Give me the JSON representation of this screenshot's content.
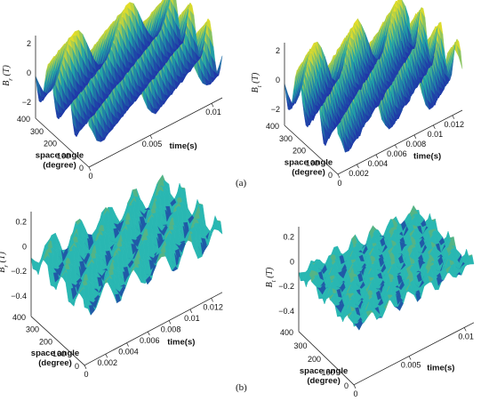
{
  "figure": {
    "label_a": "(a)",
    "label_b": "(b)"
  },
  "colors": {
    "surface_low": "#1f2fa8",
    "surface_mid": "#21a6a6",
    "surface_high": "#f5e21b",
    "flat_surface": "#29b7b2",
    "axis": "#222222"
  },
  "chart_data": [
    {
      "type": "surface",
      "panel": "a-left",
      "zlabel": "B_r (T)",
      "zlabel_main": "B",
      "zlabel_sub": "r",
      "zlabel_unit": "(T)",
      "ylabel_lines": [
        "space angle",
        "(degree)"
      ],
      "xlabel": "time(s)",
      "z_ticks": [
        "2",
        "0",
        "−2"
      ],
      "y_ticks": [
        "400",
        "300",
        "200",
        "100",
        "0"
      ],
      "x_ticks": [
        "0",
        "0.005",
        "0.01"
      ],
      "xlim": [
        0,
        0.012
      ],
      "ylim": [
        0,
        400
      ],
      "zlim": [
        -2,
        2
      ],
      "wave": {
        "amplitude": 1.8,
        "space_periods": 3,
        "time_periods": 2.5,
        "noise": 0.05
      }
    },
    {
      "type": "surface",
      "panel": "a-right",
      "zlabel": "B_t (T)",
      "zlabel_main": "B",
      "zlabel_sub": "t",
      "zlabel_unit": "(T)",
      "ylabel_lines": [
        "space angle",
        "(degree)"
      ],
      "xlabel": "time(s)",
      "z_ticks": [
        "2",
        "0",
        "−2"
      ],
      "y_ticks": [
        "400",
        "300",
        "200",
        "100",
        "0"
      ],
      "x_ticks": [
        "0",
        "0.002",
        "0.004",
        "0.006",
        "0.008",
        "0.01",
        "0.012"
      ],
      "xlim": [
        0,
        0.012
      ],
      "ylim": [
        0,
        400
      ],
      "zlim": [
        -2,
        2
      ],
      "wave": {
        "amplitude": 1.9,
        "space_periods": 3,
        "time_periods": 3,
        "noise": 0.08
      }
    },
    {
      "type": "surface",
      "panel": "b-left",
      "zlabel": "B_r (T)",
      "zlabel_main": "B",
      "zlabel_sub": "r",
      "zlabel_unit": "(T)",
      "ylabel_lines": [
        "space angle",
        "(degree)"
      ],
      "xlabel": "time(s)",
      "z_ticks": [
        "0.2",
        "0",
        "−0.2",
        "−0.4"
      ],
      "y_ticks": [
        "400",
        "300",
        "200",
        "100",
        "0"
      ],
      "x_ticks": [
        "0",
        "0.002",
        "0.004",
        "0.006",
        "0.008",
        "0.01",
        "0.012"
      ],
      "xlim": [
        0,
        0.012
      ],
      "ylim": [
        0,
        400
      ],
      "zlim": [
        -0.4,
        0.3
      ],
      "wave": {
        "amplitude": 0.12,
        "space_periods": 3,
        "time_periods": 5,
        "noise": 0.08
      }
    },
    {
      "type": "surface",
      "panel": "b-right",
      "zlabel": "B_t (T)",
      "zlabel_main": "B",
      "zlabel_sub": "t",
      "zlabel_unit": "(T)",
      "ylabel_lines": [
        "space angle",
        "(degree)"
      ],
      "xlabel": "time(s)",
      "z_ticks": [
        "0.2",
        "0",
        "−0.2",
        "−0.4"
      ],
      "y_ticks": [
        "400",
        "300",
        "200",
        "100",
        "0"
      ],
      "x_ticks": [
        "0",
        "0.005",
        "0.01"
      ],
      "xlim": [
        0,
        0.012
      ],
      "ylim": [
        0,
        400
      ],
      "zlim": [
        -0.4,
        0.3
      ],
      "wave": {
        "amplitude": 0.06,
        "space_periods": 3,
        "time_periods": 6,
        "noise": 0.1
      }
    }
  ]
}
